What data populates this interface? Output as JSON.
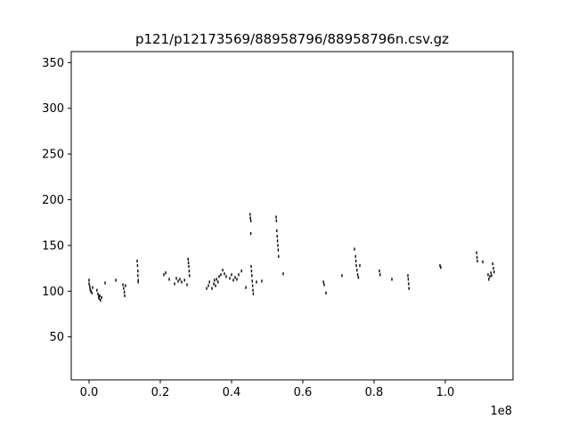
{
  "chart_data": {
    "type": "scatter",
    "title": "p121/p12173569/88958796/88958796n.csv.gz",
    "xlabel": "",
    "ylabel": "",
    "x_offset_label": "1e8",
    "xlim": [
      -0.05,
      1.19
    ],
    "ylim": [
      3,
      362
    ],
    "x_ticks": [
      0.0,
      0.2,
      0.4,
      0.6,
      0.8,
      1.0
    ],
    "x_tick_labels": [
      "0.0",
      "0.2",
      "0.4",
      "0.6",
      "0.8",
      "1.0"
    ],
    "y_ticks": [
      50,
      100,
      150,
      200,
      250,
      300,
      350
    ],
    "y_tick_labels": [
      "50",
      "100",
      "150",
      "200",
      "250",
      "300",
      "350"
    ],
    "grid": false,
    "marker_color": "#000000",
    "series": [
      {
        "points": [
          [
            0.0,
            112
          ],
          [
            0.0,
            108
          ],
          [
            0.002,
            105
          ],
          [
            0.003,
            102
          ],
          [
            0.005,
            100
          ],
          [
            0.008,
            98
          ],
          [
            0.01,
            104
          ],
          [
            0.022,
            101
          ],
          [
            0.025,
            97
          ],
          [
            0.027,
            94
          ],
          [
            0.028,
            92
          ],
          [
            0.03,
            95
          ],
          [
            0.032,
            90
          ],
          [
            0.035,
            93
          ],
          [
            0.045,
            109
          ],
          [
            0.075,
            112
          ],
          [
            0.095,
            107
          ],
          [
            0.097,
            103
          ],
          [
            0.099,
            99
          ],
          [
            0.1,
            95
          ],
          [
            0.102,
            106
          ],
          [
            0.135,
            133
          ],
          [
            0.136,
            128
          ],
          [
            0.137,
            122
          ],
          [
            0.137,
            117
          ],
          [
            0.138,
            112
          ],
          [
            0.138,
            110
          ],
          [
            0.21,
            118
          ],
          [
            0.215,
            120
          ],
          [
            0.225,
            113
          ],
          [
            0.24,
            108
          ],
          [
            0.245,
            114
          ],
          [
            0.25,
            111
          ],
          [
            0.255,
            113
          ],
          [
            0.26,
            110
          ],
          [
            0.268,
            112
          ],
          [
            0.275,
            107
          ],
          [
            0.278,
            135
          ],
          [
            0.279,
            131
          ],
          [
            0.28,
            127
          ],
          [
            0.281,
            122
          ],
          [
            0.282,
            117
          ],
          [
            0.33,
            103
          ],
          [
            0.335,
            106
          ],
          [
            0.338,
            110
          ],
          [
            0.345,
            103
          ],
          [
            0.35,
            108
          ],
          [
            0.352,
            112
          ],
          [
            0.355,
            106
          ],
          [
            0.358,
            113
          ],
          [
            0.362,
            110
          ],
          [
            0.365,
            116
          ],
          [
            0.37,
            118
          ],
          [
            0.375,
            123
          ],
          [
            0.38,
            119
          ],
          [
            0.385,
            116
          ],
          [
            0.395,
            114
          ],
          [
            0.4,
            118
          ],
          [
            0.405,
            112
          ],
          [
            0.41,
            115
          ],
          [
            0.415,
            113
          ],
          [
            0.42,
            118
          ],
          [
            0.428,
            122
          ],
          [
            0.44,
            104
          ],
          [
            0.452,
            184
          ],
          [
            0.453,
            180
          ],
          [
            0.454,
            177
          ],
          [
            0.454,
            163
          ],
          [
            0.455,
            127
          ],
          [
            0.456,
            122
          ],
          [
            0.457,
            117
          ],
          [
            0.458,
            111
          ],
          [
            0.459,
            106
          ],
          [
            0.46,
            101
          ],
          [
            0.461,
            97
          ],
          [
            0.47,
            110
          ],
          [
            0.485,
            111
          ],
          [
            0.525,
            181
          ],
          [
            0.526,
            177
          ],
          [
            0.527,
            166
          ],
          [
            0.528,
            160
          ],
          [
            0.529,
            155
          ],
          [
            0.53,
            150
          ],
          [
            0.531,
            145
          ],
          [
            0.532,
            138
          ],
          [
            0.545,
            119
          ],
          [
            0.658,
            110
          ],
          [
            0.66,
            107
          ],
          [
            0.665,
            98
          ],
          [
            0.71,
            117
          ],
          [
            0.745,
            146
          ],
          [
            0.748,
            138
          ],
          [
            0.749,
            133
          ],
          [
            0.75,
            128
          ],
          [
            0.752,
            123
          ],
          [
            0.754,
            118
          ],
          [
            0.756,
            115
          ],
          [
            0.76,
            128
          ],
          [
            0.815,
            122
          ],
          [
            0.817,
            118
          ],
          [
            0.85,
            113
          ],
          [
            0.895,
            117
          ],
          [
            0.896,
            113
          ],
          [
            0.897,
            108
          ],
          [
            0.898,
            103
          ],
          [
            0.985,
            128
          ],
          [
            0.987,
            126
          ],
          [
            1.088,
            142
          ],
          [
            1.089,
            137
          ],
          [
            1.09,
            133
          ],
          [
            1.105,
            132
          ],
          [
            1.12,
            118
          ],
          [
            1.122,
            113
          ],
          [
            1.125,
            116
          ],
          [
            1.128,
            120
          ],
          [
            1.13,
            117
          ],
          [
            1.133,
            130
          ],
          [
            1.135,
            125
          ],
          [
            1.137,
            121
          ]
        ]
      }
    ]
  }
}
